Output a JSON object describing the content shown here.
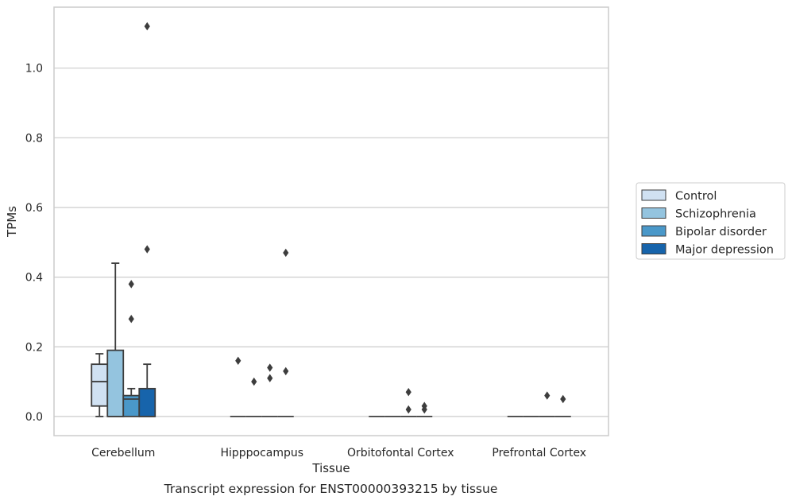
{
  "caption": "Transcript expression for ENST00000393215 by tissue",
  "colors": {
    "Control": "#d0e1f2",
    "Schizophrenia": "#94c4df",
    "Bipolar disorder": "#4a98c9",
    "Major depression": "#1764ab",
    "grid": "#cccccc",
    "line": "#3d3d3d",
    "frame": "#cccccc"
  },
  "chart_data": {
    "type": "box",
    "xlabel": "Tissue",
    "ylabel": "TPMs",
    "ylim": [
      -0.055,
      1.175
    ],
    "yticks": [
      0.0,
      0.2,
      0.4,
      0.6,
      0.8,
      1.0
    ],
    "ytick_labels": [
      "0.0",
      "0.2",
      "0.4",
      "0.6",
      "0.8",
      "1.0"
    ],
    "grid": "horizontal",
    "legend_position": "right",
    "categories": [
      "Cerebellum",
      "Hipppocampus",
      "Orbitofontal Cortex",
      "Prefrontal Cortex"
    ],
    "series": [
      {
        "name": "Control",
        "boxes": [
          {
            "min": 0.0,
            "q1": 0.03,
            "median": 0.1,
            "q3": 0.15,
            "max": 0.18,
            "outliers": []
          },
          {
            "min": 0.0,
            "q1": 0.0,
            "median": 0.0,
            "q3": 0.0,
            "max": 0.0,
            "outliers": [
              0.16
            ]
          },
          {
            "min": 0.0,
            "q1": 0.0,
            "median": 0.0,
            "q3": 0.0,
            "max": 0.0,
            "outliers": []
          },
          {
            "min": 0.0,
            "q1": 0.0,
            "median": 0.0,
            "q3": 0.0,
            "max": 0.0,
            "outliers": []
          }
        ]
      },
      {
        "name": "Schizophrenia",
        "boxes": [
          {
            "min": 0.0,
            "q1": 0.0,
            "median": 0.0,
            "q3": 0.19,
            "max": 0.44,
            "outliers": []
          },
          {
            "min": 0.0,
            "q1": 0.0,
            "median": 0.0,
            "q3": 0.0,
            "max": 0.0,
            "outliers": [
              0.1
            ]
          },
          {
            "min": 0.0,
            "q1": 0.0,
            "median": 0.0,
            "q3": 0.0,
            "max": 0.0,
            "outliers": []
          },
          {
            "min": 0.0,
            "q1": 0.0,
            "median": 0.0,
            "q3": 0.0,
            "max": 0.0,
            "outliers": []
          }
        ]
      },
      {
        "name": "Bipolar disorder",
        "boxes": [
          {
            "min": 0.0,
            "q1": 0.0,
            "median": 0.05,
            "q3": 0.06,
            "max": 0.08,
            "outliers": [
              0.38,
              0.28
            ]
          },
          {
            "min": 0.0,
            "q1": 0.0,
            "median": 0.0,
            "q3": 0.0,
            "max": 0.0,
            "outliers": [
              0.14,
              0.11
            ]
          },
          {
            "min": 0.0,
            "q1": 0.0,
            "median": 0.0,
            "q3": 0.0,
            "max": 0.0,
            "outliers": [
              0.07,
              0.02
            ]
          },
          {
            "min": 0.0,
            "q1": 0.0,
            "median": 0.0,
            "q3": 0.0,
            "max": 0.0,
            "outliers": [
              0.06
            ]
          }
        ]
      },
      {
        "name": "Major depression",
        "boxes": [
          {
            "min": 0.0,
            "q1": 0.0,
            "median": 0.0,
            "q3": 0.08,
            "max": 0.15,
            "outliers": [
              1.12,
              0.48
            ]
          },
          {
            "min": 0.0,
            "q1": 0.0,
            "median": 0.0,
            "q3": 0.0,
            "max": 0.0,
            "outliers": [
              0.47,
              0.13
            ]
          },
          {
            "min": 0.0,
            "q1": 0.0,
            "median": 0.0,
            "q3": 0.0,
            "max": 0.0,
            "outliers": [
              0.03,
              0.02
            ]
          },
          {
            "min": 0.0,
            "q1": 0.0,
            "median": 0.0,
            "q3": 0.0,
            "max": 0.0,
            "outliers": [
              0.05
            ]
          }
        ]
      }
    ]
  }
}
